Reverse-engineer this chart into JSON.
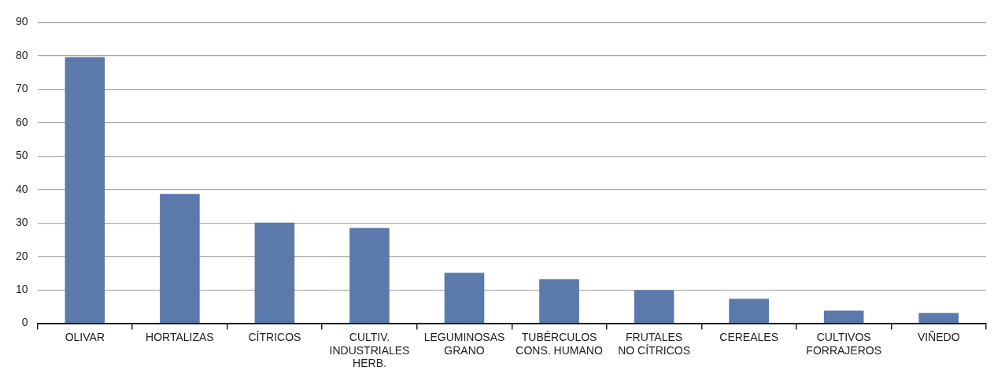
{
  "chart_data": {
    "type": "bar",
    "categories": [
      "OLIVAR",
      "HORTALIZAS",
      "CÍTRICOS",
      "CULTIV.\nINDUSTRIALES\nHERB.",
      "LEGUMINOSAS\nGRANO",
      "TUBÉRCULOS\nCONS. HUMANO",
      "FRUTALES\nNO CÍTRICOS",
      "CEREALES",
      "CULTIVOS\nFORRAJEROS",
      "VIÑEDO"
    ],
    "values": [
      79.6,
      38.7,
      30.1,
      28.5,
      15.1,
      13.2,
      9.9,
      7.3,
      3.8,
      3.1
    ],
    "color": "#5b79ab",
    "ylim": [
      0,
      90
    ],
    "yticks": [
      0,
      10,
      20,
      30,
      40,
      50,
      60,
      70,
      80,
      90
    ],
    "grid": "y",
    "legend": false
  }
}
